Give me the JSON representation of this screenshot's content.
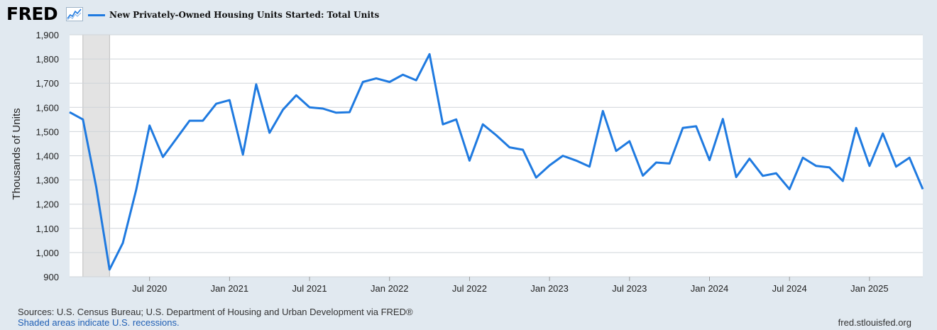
{
  "header": {
    "logo_text": "FRED",
    "logo_icon": "sparkline-chart-icon",
    "legend_label": "New Privately-Owned Housing Units Started: Total Units",
    "line_color": "#1f7ae0"
  },
  "footer": {
    "sources": "Sources: U.S. Census Bureau; U.S. Department of Housing and Urban Development via FRED®",
    "recession_note": "Shaded areas indicate U.S. recessions.",
    "site": "fred.stlouisfed.org"
  },
  "chart_data": {
    "type": "line",
    "title": "New Privately-Owned Housing Units Started: Total Units",
    "xlabel": "",
    "ylabel": "Thousands of Units",
    "ylim": [
      900,
      1900
    ],
    "y_ticks": [
      "900",
      "1,000",
      "1,100",
      "1,200",
      "1,300",
      "1,400",
      "1,500",
      "1,600",
      "1,700",
      "1,800",
      "1,900"
    ],
    "x_range": [
      "2020-01",
      "2025-05"
    ],
    "x_ticks": [
      {
        "date": "2020-07",
        "label": "Jul 2020"
      },
      {
        "date": "2021-01",
        "label": "Jan 2021"
      },
      {
        "date": "2021-07",
        "label": "Jul 2021"
      },
      {
        "date": "2022-01",
        "label": "Jan 2022"
      },
      {
        "date": "2022-07",
        "label": "Jul 2022"
      },
      {
        "date": "2023-01",
        "label": "Jan 2023"
      },
      {
        "date": "2023-07",
        "label": "Jul 2023"
      },
      {
        "date": "2024-01",
        "label": "Jan 2024"
      },
      {
        "date": "2024-07",
        "label": "Jul 2024"
      },
      {
        "date": "2025-01",
        "label": "Jan 2025"
      }
    ],
    "grid": true,
    "recessions": [
      {
        "start": "2020-02",
        "end": "2020-04"
      }
    ],
    "series": [
      {
        "name": "New Privately-Owned Housing Units Started: Total Units",
        "color": "#1f7ae0",
        "x": [
          "2020-01",
          "2020-02",
          "2020-03",
          "2020-04",
          "2020-05",
          "2020-06",
          "2020-07",
          "2020-08",
          "2020-09",
          "2020-10",
          "2020-11",
          "2020-12",
          "2021-01",
          "2021-02",
          "2021-03",
          "2021-04",
          "2021-05",
          "2021-06",
          "2021-07",
          "2021-08",
          "2021-09",
          "2021-10",
          "2021-11",
          "2021-12",
          "2022-01",
          "2022-02",
          "2022-03",
          "2022-04",
          "2022-05",
          "2022-06",
          "2022-07",
          "2022-08",
          "2022-09",
          "2022-10",
          "2022-11",
          "2022-12",
          "2023-01",
          "2023-02",
          "2023-03",
          "2023-04",
          "2023-05",
          "2023-06",
          "2023-07",
          "2023-08",
          "2023-09",
          "2023-10",
          "2023-11",
          "2023-12",
          "2024-01",
          "2024-02",
          "2024-03",
          "2024-04",
          "2024-05",
          "2024-06",
          "2024-07",
          "2024-08",
          "2024-09",
          "2024-10",
          "2024-11",
          "2024-12",
          "2025-01",
          "2025-02",
          "2025-03",
          "2025-04",
          "2025-05"
        ],
        "values": [
          1580,
          1550,
          1270,
          930,
          1040,
          1260,
          1525,
          1395,
          1470,
          1545,
          1545,
          1615,
          1630,
          1405,
          1695,
          1495,
          1590,
          1650,
          1600,
          1595,
          1578,
          1580,
          1705,
          1720,
          1705,
          1735,
          1712,
          1820,
          1530,
          1550,
          1380,
          1530,
          1485,
          1435,
          1425,
          1310,
          1360,
          1400,
          1380,
          1355,
          1585,
          1420,
          1460,
          1318,
          1372,
          1368,
          1515,
          1522,
          1382,
          1552,
          1312,
          1388,
          1317,
          1328,
          1262,
          1392,
          1358,
          1352,
          1296,
          1515,
          1358,
          1492,
          1355,
          1392,
          1262
        ]
      }
    ]
  }
}
